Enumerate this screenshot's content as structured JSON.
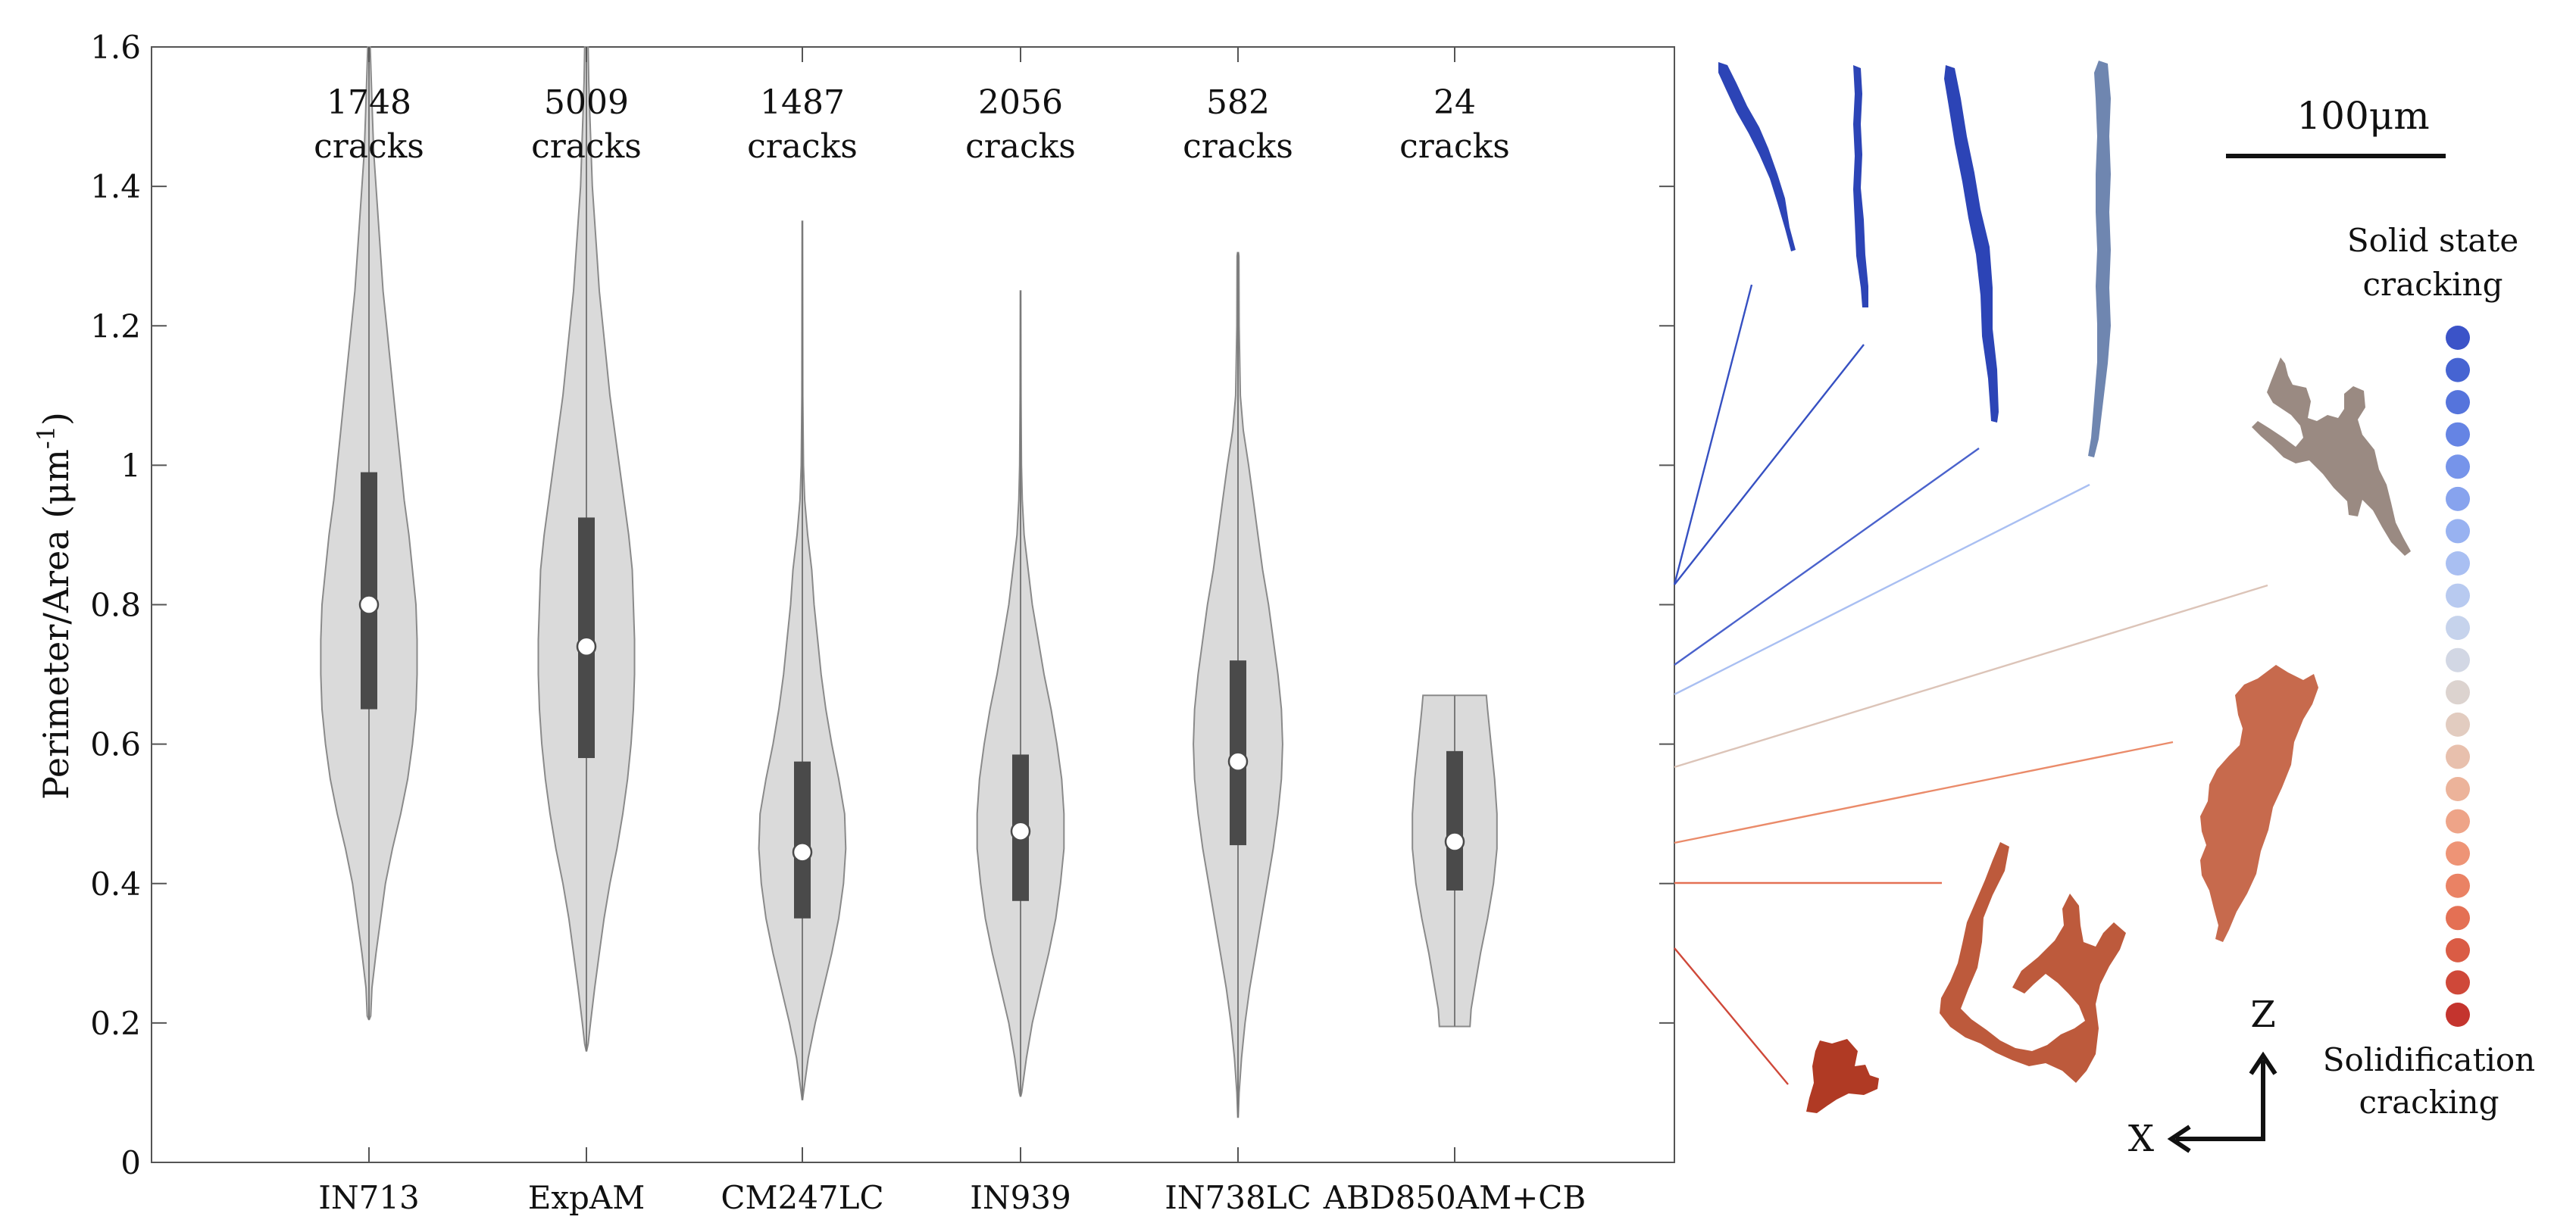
{
  "chart_data": {
    "type": "violin",
    "title": "",
    "xlabel": "",
    "ylabel": "Perimeter/Area (μm",
    "ylabel_exponent": "-1",
    "ylabel_suffix": ")",
    "ylim": [
      0,
      1.6
    ],
    "yticks": [
      0,
      0.2,
      0.4,
      0.6,
      0.8,
      1,
      1.2,
      1.4,
      1.6
    ],
    "ytick_labels": [
      "0",
      "0.2",
      "0.4",
      "0.6",
      "0.8",
      "1",
      "1.2",
      "1.4",
      "1.6"
    ],
    "categories": [
      "IN713",
      "ExpAM",
      "CM247LC",
      "IN939",
      "IN738LC",
      "ABD850AM+CB"
    ],
    "counts": [
      {
        "number": "1748",
        "unit": "cracks"
      },
      {
        "number": "5009",
        "unit": "cracks"
      },
      {
        "number": "1487",
        "unit": "cracks"
      },
      {
        "number": "2056",
        "unit": "cracks"
      },
      {
        "number": "582",
        "unit": "cracks"
      },
      {
        "number": "24",
        "unit": "cracks"
      }
    ],
    "series": [
      {
        "name": "IN713",
        "min": 0.205,
        "max": 1.6,
        "q1": 0.65,
        "median": 0.8,
        "q3": 0.99,
        "profile": [
          [
            0.205,
            0.002
          ],
          [
            0.21,
            0.015
          ],
          [
            0.25,
            0.025
          ],
          [
            0.3,
            0.06
          ],
          [
            0.35,
            0.1
          ],
          [
            0.4,
            0.14
          ],
          [
            0.45,
            0.2
          ],
          [
            0.5,
            0.27
          ],
          [
            0.55,
            0.33
          ],
          [
            0.6,
            0.37
          ],
          [
            0.65,
            0.4
          ],
          [
            0.7,
            0.41
          ],
          [
            0.75,
            0.41
          ],
          [
            0.8,
            0.4
          ],
          [
            0.85,
            0.37
          ],
          [
            0.9,
            0.34
          ],
          [
            0.95,
            0.3
          ],
          [
            1.0,
            0.27
          ],
          [
            1.05,
            0.24
          ],
          [
            1.1,
            0.21
          ],
          [
            1.15,
            0.18
          ],
          [
            1.2,
            0.15
          ],
          [
            1.25,
            0.12
          ],
          [
            1.3,
            0.1
          ],
          [
            1.35,
            0.08
          ],
          [
            1.4,
            0.06
          ],
          [
            1.45,
            0.04
          ],
          [
            1.5,
            0.03
          ],
          [
            1.55,
            0.02
          ],
          [
            1.6,
            0.01
          ]
        ]
      },
      {
        "name": "ExpAM",
        "min": 0.16,
        "max": 1.6,
        "q1": 0.58,
        "median": 0.74,
        "q3": 0.925,
        "profile": [
          [
            0.16,
            0.002
          ],
          [
            0.17,
            0.015
          ],
          [
            0.2,
            0.035
          ],
          [
            0.25,
            0.07
          ],
          [
            0.3,
            0.11
          ],
          [
            0.35,
            0.15
          ],
          [
            0.4,
            0.2
          ],
          [
            0.45,
            0.26
          ],
          [
            0.5,
            0.31
          ],
          [
            0.55,
            0.35
          ],
          [
            0.6,
            0.38
          ],
          [
            0.65,
            0.4
          ],
          [
            0.7,
            0.41
          ],
          [
            0.75,
            0.41
          ],
          [
            0.8,
            0.4
          ],
          [
            0.85,
            0.39
          ],
          [
            0.9,
            0.36
          ],
          [
            0.95,
            0.32
          ],
          [
            1.0,
            0.28
          ],
          [
            1.05,
            0.24
          ],
          [
            1.1,
            0.2
          ],
          [
            1.15,
            0.17
          ],
          [
            1.2,
            0.14
          ],
          [
            1.25,
            0.11
          ],
          [
            1.3,
            0.09
          ],
          [
            1.35,
            0.07
          ],
          [
            1.4,
            0.05
          ],
          [
            1.45,
            0.04
          ],
          [
            1.5,
            0.03
          ],
          [
            1.55,
            0.02
          ],
          [
            1.6,
            0.015
          ]
        ]
      },
      {
        "name": "CM247LC",
        "min": 0.09,
        "max": 1.35,
        "q1": 0.35,
        "median": 0.445,
        "q3": 0.575,
        "profile": [
          [
            0.09,
            0.002
          ],
          [
            0.1,
            0.01
          ],
          [
            0.15,
            0.05
          ],
          [
            0.2,
            0.11
          ],
          [
            0.25,
            0.18
          ],
          [
            0.3,
            0.25
          ],
          [
            0.35,
            0.31
          ],
          [
            0.4,
            0.35
          ],
          [
            0.45,
            0.37
          ],
          [
            0.5,
            0.36
          ],
          [
            0.55,
            0.31
          ],
          [
            0.6,
            0.25
          ],
          [
            0.65,
            0.2
          ],
          [
            0.7,
            0.16
          ],
          [
            0.75,
            0.13
          ],
          [
            0.8,
            0.1
          ],
          [
            0.85,
            0.08
          ],
          [
            0.9,
            0.045
          ],
          [
            0.95,
            0.02
          ],
          [
            1.0,
            0.01
          ],
          [
            1.1,
            0.004
          ],
          [
            1.35,
            0.002
          ]
        ]
      },
      {
        "name": "IN939",
        "min": 0.095,
        "max": 1.25,
        "q1": 0.375,
        "median": 0.475,
        "q3": 0.585,
        "profile": [
          [
            0.095,
            0.002
          ],
          [
            0.1,
            0.01
          ],
          [
            0.15,
            0.05
          ],
          [
            0.2,
            0.1
          ],
          [
            0.25,
            0.17
          ],
          [
            0.3,
            0.24
          ],
          [
            0.35,
            0.3
          ],
          [
            0.4,
            0.34
          ],
          [
            0.45,
            0.37
          ],
          [
            0.5,
            0.37
          ],
          [
            0.55,
            0.35
          ],
          [
            0.6,
            0.31
          ],
          [
            0.65,
            0.26
          ],
          [
            0.7,
            0.2
          ],
          [
            0.75,
            0.15
          ],
          [
            0.8,
            0.1
          ],
          [
            0.85,
            0.065
          ],
          [
            0.9,
            0.03
          ],
          [
            0.95,
            0.015
          ],
          [
            1.0,
            0.008
          ],
          [
            1.1,
            0.004
          ],
          [
            1.25,
            0.002
          ]
        ]
      },
      {
        "name": "IN738LC",
        "min": 0.065,
        "max": 1.305,
        "q1": 0.455,
        "median": 0.575,
        "q3": 0.72,
        "profile": [
          [
            0.065,
            0.002
          ],
          [
            0.1,
            0.01
          ],
          [
            0.15,
            0.03
          ],
          [
            0.2,
            0.06
          ],
          [
            0.25,
            0.1
          ],
          [
            0.3,
            0.15
          ],
          [
            0.35,
            0.2
          ],
          [
            0.4,
            0.25
          ],
          [
            0.45,
            0.3
          ],
          [
            0.5,
            0.34
          ],
          [
            0.55,
            0.37
          ],
          [
            0.6,
            0.38
          ],
          [
            0.65,
            0.37
          ],
          [
            0.7,
            0.34
          ],
          [
            0.75,
            0.3
          ],
          [
            0.8,
            0.26
          ],
          [
            0.85,
            0.21
          ],
          [
            0.9,
            0.17
          ],
          [
            0.95,
            0.13
          ],
          [
            1.0,
            0.09
          ],
          [
            1.05,
            0.045
          ],
          [
            1.1,
            0.02
          ],
          [
            1.2,
            0.01
          ],
          [
            1.3,
            0.008
          ],
          [
            1.305,
            0.004
          ]
        ]
      },
      {
        "name": "ABD850AM+CB",
        "min": 0.195,
        "max": 0.67,
        "q1": 0.39,
        "median": 0.46,
        "q3": 0.59,
        "profile": [
          [
            0.195,
            0.13
          ],
          [
            0.22,
            0.14
          ],
          [
            0.25,
            0.17
          ],
          [
            0.3,
            0.22
          ],
          [
            0.35,
            0.28
          ],
          [
            0.4,
            0.33
          ],
          [
            0.45,
            0.36
          ],
          [
            0.5,
            0.36
          ],
          [
            0.55,
            0.34
          ],
          [
            0.6,
            0.31
          ],
          [
            0.65,
            0.28
          ],
          [
            0.67,
            0.27
          ]
        ]
      }
    ]
  },
  "panel": {
    "scale_bar_label": "100μm",
    "legend_top_line1": "Solid state",
    "legend_top_line2": "cracking",
    "legend_bottom_line1": "Solidification",
    "legend_bottom_line2": "cracking",
    "axis_z_label": "Z",
    "axis_x_label": "X",
    "gradient_colors": [
      "#3b53c8",
      "#4664d2",
      "#5574dc",
      "#6584e4",
      "#7694ea",
      "#87a3ee",
      "#98b2f1",
      "#a9bff2",
      "#b8caf0",
      "#c6d3ec",
      "#d2d7e4",
      "#dcd3cf",
      "#e2ccc0",
      "#e8c0ad",
      "#ecb39a",
      "#eea488",
      "#ee9476",
      "#ea8264",
      "#e47054",
      "#da5c45",
      "#cf4839",
      "#c4342e"
    ],
    "shape_colors": {
      "blue_dark": "#2c44b6",
      "blue_mid": "#3650c2",
      "blue_grey": "#6f86b0",
      "grey_brown": "#9a8a82",
      "orange": "#c76a4d",
      "red_orange": "#bd5a3c",
      "dark_red": "#b03a24"
    }
  }
}
